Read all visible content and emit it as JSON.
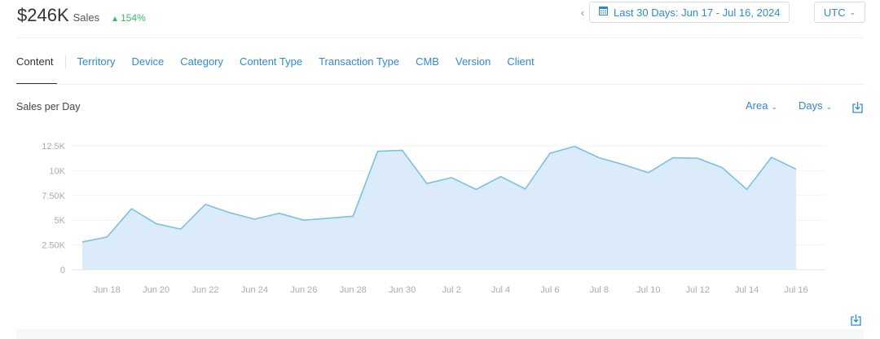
{
  "summary": {
    "total": "$246K",
    "label": "Sales",
    "delta": "154%",
    "delta_color": "#3eb86a"
  },
  "date_range": {
    "prev_icon": "chevron-left-icon",
    "calendar_icon": "calendar-icon",
    "label": "Last 30 Days: Jun 17 - Jul 16, 2024"
  },
  "timezone": {
    "label": "UTC"
  },
  "tabs": [
    {
      "label": "Content",
      "active": true
    },
    {
      "label": "Territory"
    },
    {
      "label": "Device"
    },
    {
      "label": "Category"
    },
    {
      "label": "Content Type"
    },
    {
      "label": "Transaction Type"
    },
    {
      "label": "CMB"
    },
    {
      "label": "Version"
    },
    {
      "label": "Client"
    }
  ],
  "section": {
    "title": "Sales per Day"
  },
  "controls": {
    "chart_type": "Area",
    "granularity": "Days",
    "download_icon": "download-icon"
  },
  "colors": {
    "accent": "#2f89d7",
    "area_fill": "#dcebfa",
    "area_line": "#7cc1e4"
  },
  "chart_data": {
    "type": "area",
    "title": "Sales per Day",
    "x": [
      "Jun 17",
      "Jun 18",
      "Jun 19",
      "Jun 20",
      "Jun 21",
      "Jun 22",
      "Jun 23",
      "Jun 24",
      "Jun 25",
      "Jun 26",
      "Jun 27",
      "Jun 28",
      "Jun 29",
      "Jun 30",
      "Jul 1",
      "Jul 2",
      "Jul 3",
      "Jul 4",
      "Jul 5",
      "Jul 6",
      "Jul 7",
      "Jul 8",
      "Jul 9",
      "Jul 10",
      "Jul 11",
      "Jul 12",
      "Jul 13",
      "Jul 14",
      "Jul 15",
      "Jul 16"
    ],
    "x_tick_labels": [
      "Jun 18",
      "Jun 20",
      "Jun 22",
      "Jun 24",
      "Jun 26",
      "Jun 28",
      "Jun 30",
      "Jul 2",
      "Jul 4",
      "Jul 6",
      "Jul 8",
      "Jul 10",
      "Jul 12",
      "Jul 14",
      "Jul 16"
    ],
    "series": [
      {
        "values": [
          2800,
          3300,
          6150,
          4650,
          4100,
          6600,
          5750,
          5100,
          5700,
          5000,
          5200,
          5400,
          11950,
          12050,
          8700,
          9300,
          8100,
          9400,
          8150,
          11750,
          12450,
          11300,
          10600,
          9800,
          11300,
          11250,
          10300,
          8100,
          11350,
          10150
        ]
      }
    ],
    "y_ticks": [
      0,
      2500,
      5000,
      7500,
      10000,
      12500
    ],
    "y_tick_labels": [
      "0",
      "2.50K",
      "5K",
      "7.50K",
      "10K",
      "12.5K"
    ],
    "ylim": [
      0,
      12500
    ],
    "grid": true,
    "legend": "none"
  }
}
